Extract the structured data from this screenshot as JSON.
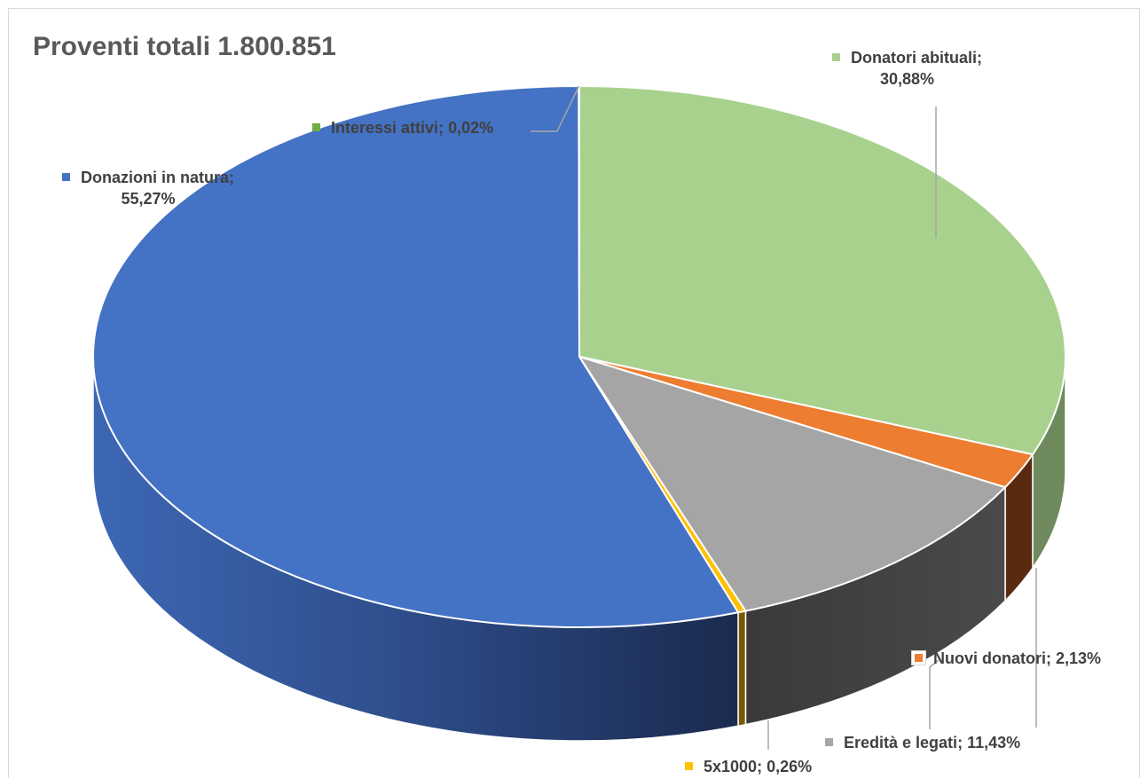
{
  "chart_data": {
    "type": "pie",
    "title": "Proventi totali 1.800.851",
    "three_d": true,
    "start_angle": "12 o'clock, clockwise",
    "slices": [
      {
        "label": "Donatori abituali",
        "value": 30.88,
        "display": "30,88%",
        "color": "#a9d18e"
      },
      {
        "label": "Nuovi donatori",
        "value": 2.13,
        "display": "2,13%",
        "color": "#ed7d31"
      },
      {
        "label": "Eredità e legati",
        "value": 11.43,
        "display": "11,43%",
        "color": "#a5a5a5"
      },
      {
        "label": "5x1000",
        "value": 0.26,
        "display": "0,26%",
        "color": "#ffc000"
      },
      {
        "label": "Donazioni in natura",
        "value": 55.27,
        "display": "55,27%",
        "color": "#4472c4"
      },
      {
        "label": "Interessi attivi",
        "value": 0.02,
        "display": "0,02%",
        "color": "#70ad47"
      }
    ]
  }
}
